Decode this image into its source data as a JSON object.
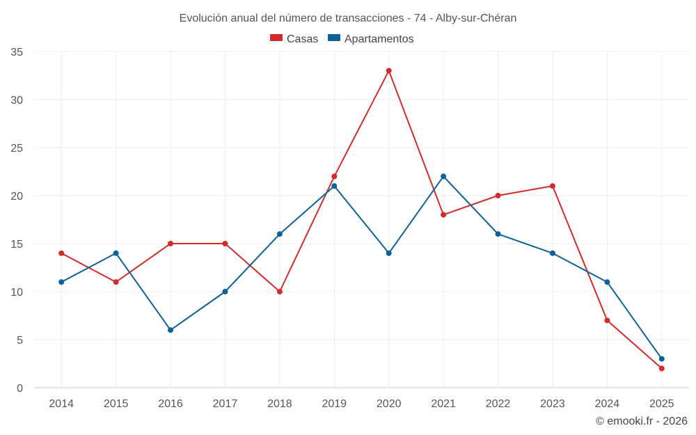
{
  "chart_data": {
    "type": "line",
    "title": "Evolución anual del número de transacciones - 74 - Alby-sur-Chéran",
    "categories": [
      "2014",
      "2015",
      "2016",
      "2017",
      "2018",
      "2019",
      "2020",
      "2021",
      "2022",
      "2023",
      "2024",
      "2025"
    ],
    "series": [
      {
        "name": "Casas",
        "color": "#d42a2a",
        "values": [
          14,
          11,
          15,
          15,
          10,
          22,
          33,
          18,
          20,
          21,
          7,
          2
        ]
      },
      {
        "name": "Apartamentos",
        "color": "#0b6297",
        "values": [
          11,
          14,
          6,
          10,
          16,
          21,
          14,
          22,
          16,
          14,
          11,
          3
        ]
      }
    ],
    "yticks": [
      0,
      5,
      10,
      15,
      20,
      25,
      30,
      35
    ],
    "ylim": [
      0,
      35
    ],
    "xlabel": "",
    "ylabel": "",
    "legend_position": "top-center",
    "grid": true
  },
  "credit": "© emooki.fr - 2026"
}
